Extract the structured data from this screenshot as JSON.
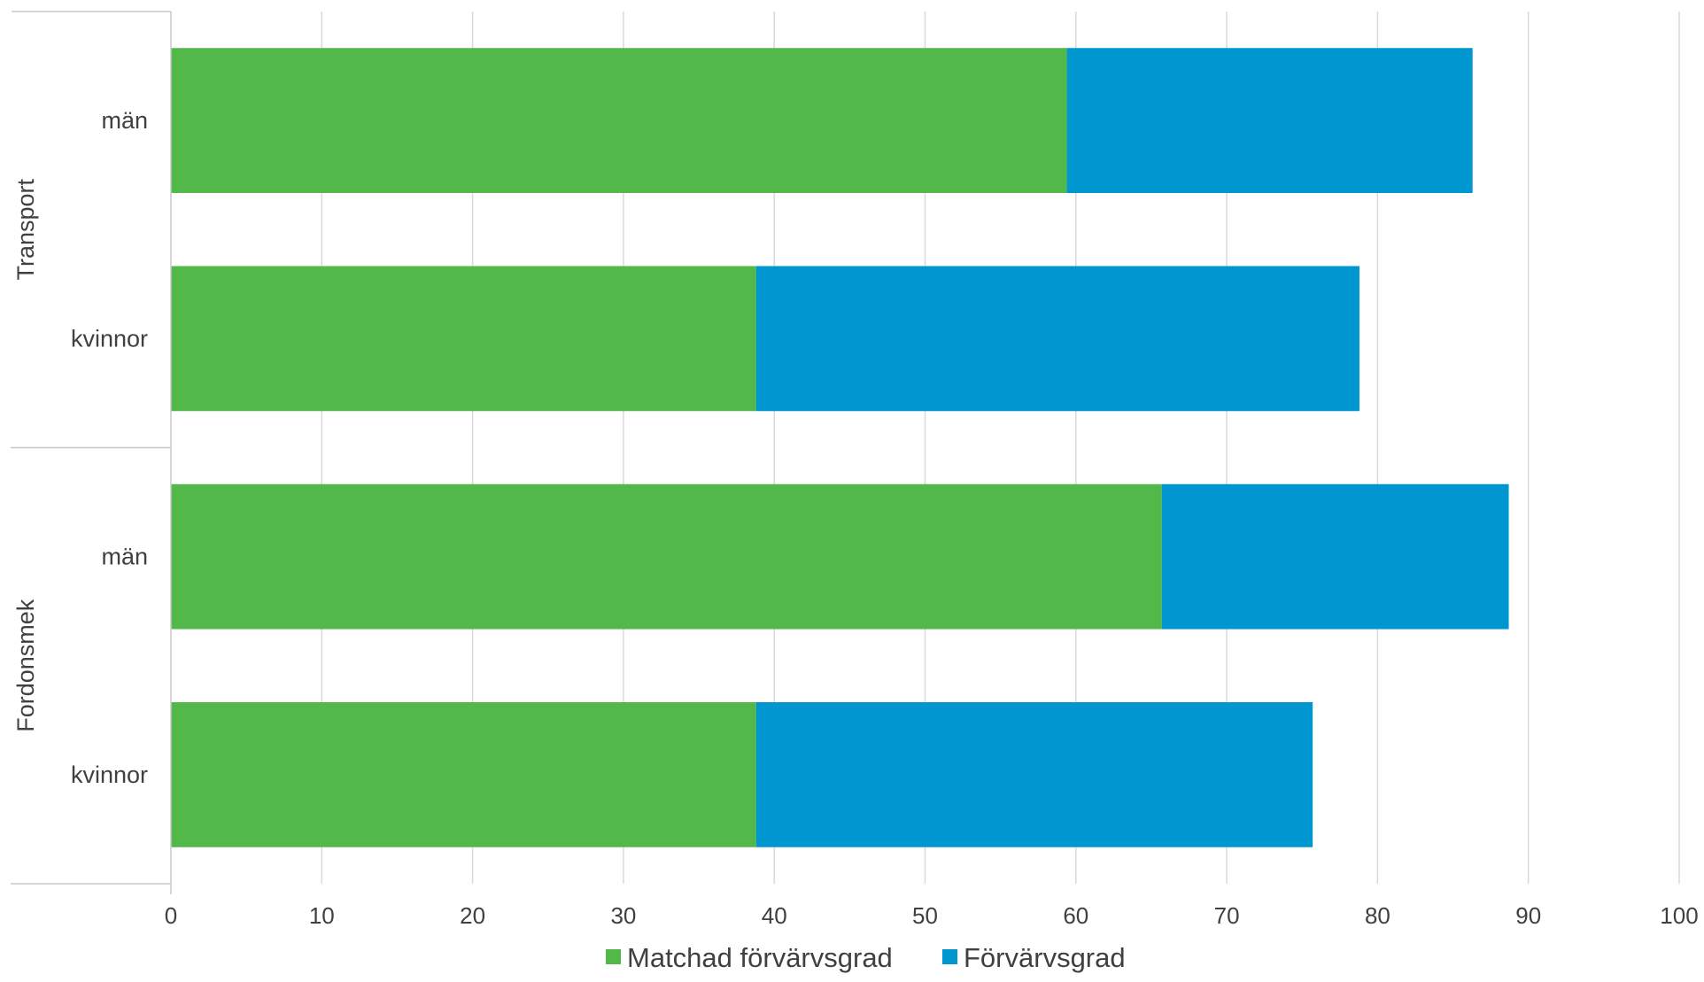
{
  "chart_data": {
    "type": "bar",
    "orientation": "horizontal",
    "stacked": true,
    "groups": [
      {
        "label": "Transport",
        "categories": [
          "män",
          "kvinnor"
        ]
      },
      {
        "label": "Fordonsmek",
        "categories": [
          "män",
          "kvinnor"
        ]
      }
    ],
    "series": [
      {
        "name": "Matchad förvärvsgrad",
        "color": "#52b84a",
        "values": [
          59.4,
          38.8,
          65.7,
          38.8
        ]
      },
      {
        "name": "Förvärvsgrad",
        "color": "#0097d0",
        "values": [
          26.9,
          40.0,
          23.0,
          36.9
        ]
      }
    ],
    "xlim": [
      0,
      100
    ],
    "xticks": [
      "0",
      "10",
      "20",
      "30",
      "40",
      "50",
      "60",
      "70",
      "80",
      "90",
      "100"
    ],
    "grid": true,
    "legend_position": "bottom"
  }
}
